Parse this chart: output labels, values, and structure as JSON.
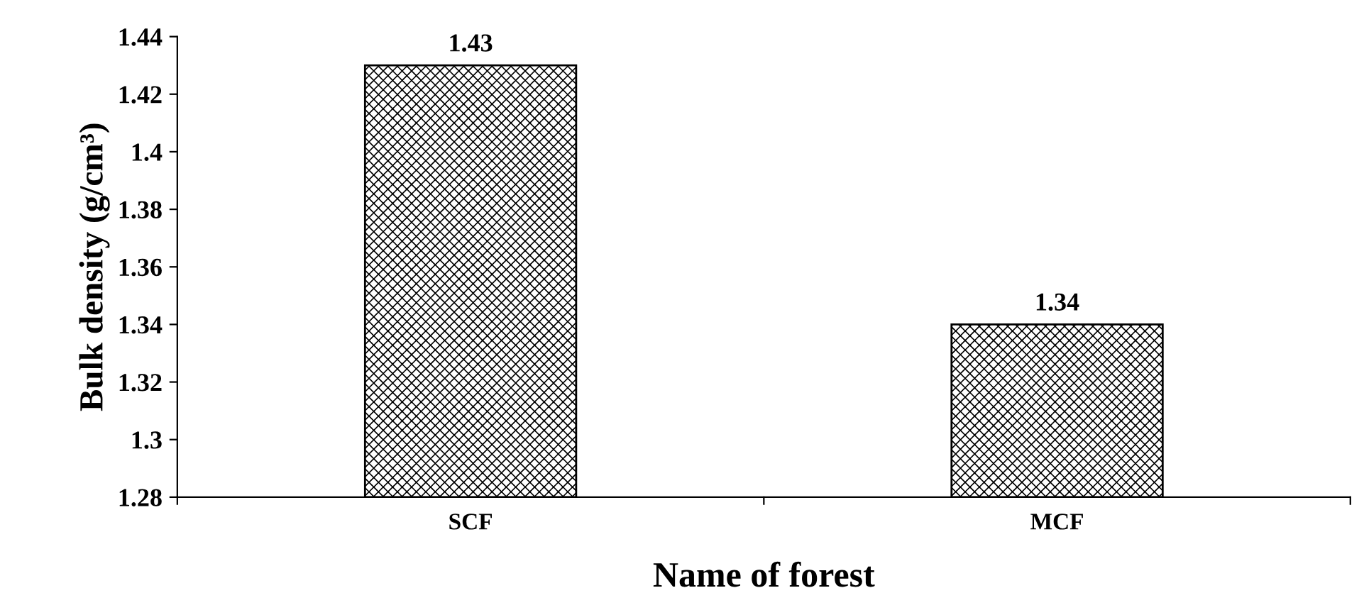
{
  "chart_data": {
    "type": "bar",
    "xlabel": "Name of forest",
    "ylabel": "Bulk density (g/cm³)",
    "categories": [
      "SCF",
      "MCF"
    ],
    "values": [
      1.43,
      1.34
    ],
    "color": "#000000",
    "ylim": [
      1.28,
      1.44
    ],
    "yticks": [
      1.28,
      {
        "value": 1.3,
        "label": "1.3"
      },
      1.32,
      1.34,
      1.36,
      1.38,
      {
        "value": 1.4,
        "label": "1.4"
      },
      1.42,
      1.44
    ],
    "data_labels": true,
    "grid": false,
    "legend": false
  }
}
